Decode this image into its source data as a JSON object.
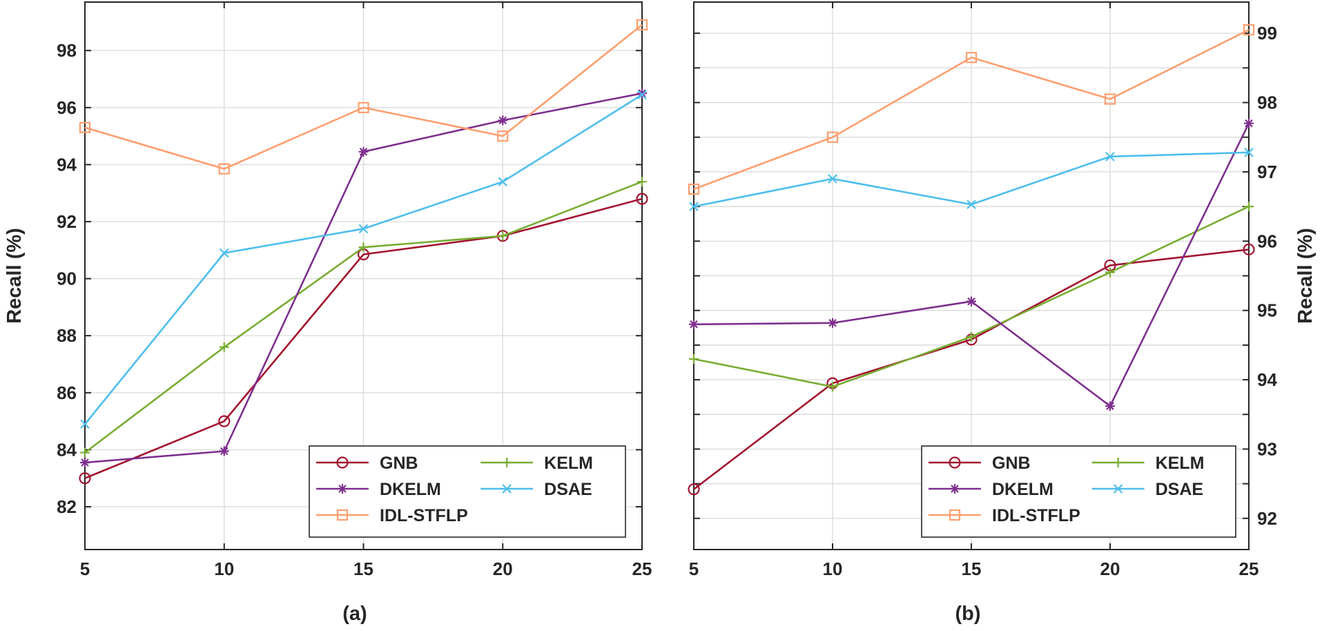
{
  "chart_data": [
    {
      "type": "line",
      "panel_label": "(a)",
      "ylabel": "Recall (%)",
      "y_axis_side": "left",
      "x": [
        5,
        10,
        15,
        20,
        25
      ],
      "xticks": [
        "5",
        "10",
        "15",
        "20",
        "25"
      ],
      "xlim": [
        5,
        25
      ],
      "ylim": [
        80.5,
        99.7
      ],
      "yticks": [
        82,
        84,
        86,
        88,
        90,
        92,
        94,
        96,
        98
      ],
      "ytick_labels": [
        "82",
        "84",
        "86",
        "88",
        "90",
        "92",
        "94",
        "96",
        "98"
      ],
      "grid": true,
      "legend_position": "bottom-right",
      "series": [
        {
          "name": "GNB",
          "color": "#a2142f",
          "marker": "circle",
          "values": [
            83.0,
            85.0,
            90.85,
            91.5,
            92.8
          ]
        },
        {
          "name": "KELM",
          "color": "#77ac30",
          "marker": "plus",
          "values": [
            83.9,
            87.6,
            91.1,
            91.5,
            93.4
          ]
        },
        {
          "name": "DKELM",
          "color": "#7e2f8e",
          "marker": "asterisk",
          "values": [
            83.55,
            83.95,
            94.45,
            95.55,
            96.5
          ]
        },
        {
          "name": "DSAE",
          "color": "#4dbeee",
          "marker": "x",
          "values": [
            84.9,
            90.9,
            91.75,
            93.4,
            96.45
          ]
        },
        {
          "name": "IDL-STFLP",
          "color": "#ff9e6e",
          "marker": "square",
          "values": [
            95.3,
            93.85,
            96.0,
            95.0,
            98.9
          ]
        }
      ]
    },
    {
      "type": "line",
      "panel_label": "(b)",
      "ylabel": "Recall (%)",
      "y_axis_side": "right",
      "x": [
        5,
        10,
        15,
        20,
        25
      ],
      "xticks": [
        "5",
        "10",
        "15",
        "20",
        "25"
      ],
      "xlim": [
        5,
        25
      ],
      "ylim": [
        91.55,
        99.45
      ],
      "yticks": [
        92,
        92.5,
        93,
        93.5,
        94,
        94.5,
        95,
        95.5,
        96,
        96.5,
        97,
        97.5,
        98,
        98.5,
        99
      ],
      "ytick_labels": [
        "92",
        "",
        "93",
        "",
        "94",
        "",
        "95",
        "",
        "96",
        "",
        "97",
        "",
        "98",
        "",
        "99"
      ],
      "grid": true,
      "legend_position": "bottom-right",
      "series": [
        {
          "name": "GNB",
          "color": "#a2142f",
          "marker": "circle",
          "values": [
            92.42,
            93.95,
            94.58,
            95.65,
            95.88
          ]
        },
        {
          "name": "KELM",
          "color": "#77ac30",
          "marker": "plus",
          "values": [
            94.3,
            93.9,
            94.62,
            95.55,
            96.5
          ]
        },
        {
          "name": "DKELM",
          "color": "#7e2f8e",
          "marker": "asterisk",
          "values": [
            94.8,
            94.82,
            95.13,
            93.62,
            97.7
          ]
        },
        {
          "name": "DSAE",
          "color": "#4dbeee",
          "marker": "x",
          "values": [
            96.5,
            96.9,
            96.53,
            97.22,
            97.28
          ]
        },
        {
          "name": "IDL-STFLP",
          "color": "#ff9e6e",
          "marker": "square",
          "values": [
            96.75,
            97.5,
            98.65,
            98.05,
            99.05
          ]
        }
      ]
    }
  ]
}
